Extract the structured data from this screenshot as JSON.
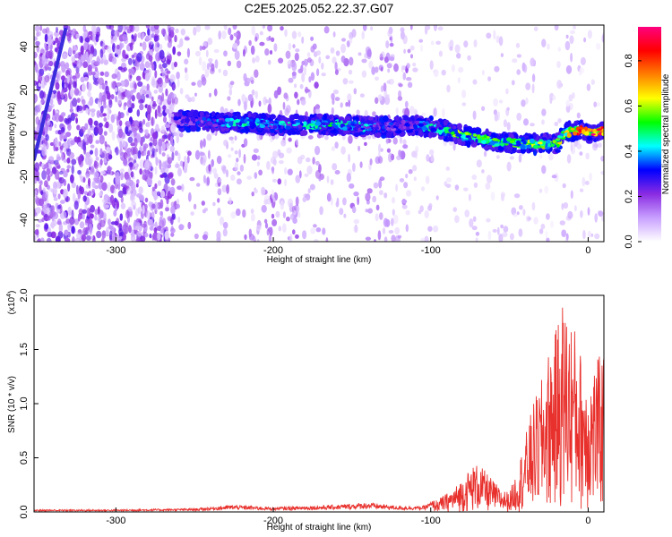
{
  "title": "C2E5.2025.052.22.37.G07",
  "chart_data": [
    {
      "type": "heatmap",
      "xlabel": "Height of straight line (km)",
      "ylabel": "Frequency (Hz)",
      "xlim": [
        -352,
        10
      ],
      "ylim": [
        -50,
        50
      ],
      "xticks": [
        -300,
        -200,
        -100,
        0
      ],
      "yticks": [
        -40,
        -20,
        0,
        20,
        40
      ],
      "colorbar": {
        "label": "Normalized spectral amplitude",
        "range": [
          0,
          0.95
        ],
        "ticks": [
          0.0,
          0.2,
          0.4,
          0.6,
          0.8
        ],
        "colors": [
          "#ffffff",
          "#c8a0ff",
          "#8a2be2",
          "#0000ff",
          "#00ffff",
          "#00ff00",
          "#ffff00",
          "#ff8000",
          "#ff0000",
          "#ff007f"
        ]
      },
      "noise_regions": [
        {
          "x": [
            -352,
            -262
          ],
          "density": "high"
        },
        {
          "x": [
            -262,
            -112
          ],
          "density": "medium"
        },
        {
          "x": [
            -112,
            10
          ],
          "density": "low"
        }
      ],
      "trend_line": {
        "x": [
          -352,
          -332
        ],
        "y": [
          -12,
          48
        ]
      },
      "signal_trace": {
        "x": [
          -262,
          -240,
          -220,
          -200,
          -180,
          -160,
          -140,
          -122,
          -115,
          -100,
          -90,
          -80,
          -70,
          -60,
          -50,
          -40,
          -30,
          -20,
          -15,
          -10,
          -5,
          0,
          10
        ],
        "y": [
          6,
          5,
          5,
          4,
          4,
          4,
          3,
          3,
          4,
          3,
          1,
          -1,
          -2,
          -4,
          -4,
          -5,
          -5,
          -5,
          0,
          1,
          2,
          0,
          1
        ],
        "amplitude": [
          0.3,
          0.35,
          0.45,
          0.4,
          0.45,
          0.5,
          0.4,
          0.3,
          0.35,
          0.45,
          0.5,
          0.6,
          0.55,
          0.55,
          0.5,
          0.6,
          0.65,
          0.6,
          0.7,
          0.7,
          0.85,
          0.9,
          0.85
        ]
      }
    },
    {
      "type": "line",
      "xlabel": "Height of straight line (km)",
      "ylabel": "SNR (10 * v/v)",
      "scale_label_base": "(x10",
      "scale_label_exp": "4",
      "scale_label_close": ")",
      "xlim": [
        -352,
        10
      ],
      "ylim": [
        0,
        2.0
      ],
      "xticks": [
        -300,
        -200,
        -100,
        0
      ],
      "yticks": [
        0.0,
        0.5,
        1.0,
        1.5,
        2.0
      ],
      "color": "#e8302c",
      "envelope": {
        "x": [
          -352,
          -300,
          -250,
          -225,
          -200,
          -160,
          -140,
          -120,
          -105,
          -95,
          -85,
          -78,
          -72,
          -68,
          -62,
          -56,
          -50,
          -45,
          -40,
          -35,
          -30,
          -25,
          -20,
          -17,
          -14,
          -10,
          -5,
          0,
          5,
          10
        ],
        "y": [
          0.02,
          0.02,
          0.03,
          0.06,
          0.04,
          0.06,
          0.08,
          0.05,
          0.05,
          0.12,
          0.22,
          0.35,
          0.45,
          0.42,
          0.32,
          0.22,
          0.18,
          0.4,
          0.7,
          1.0,
          1.2,
          1.5,
          1.7,
          2.0,
          1.9,
          1.8,
          1.5,
          1.3,
          1.4,
          1.5
        ]
      }
    }
  ]
}
